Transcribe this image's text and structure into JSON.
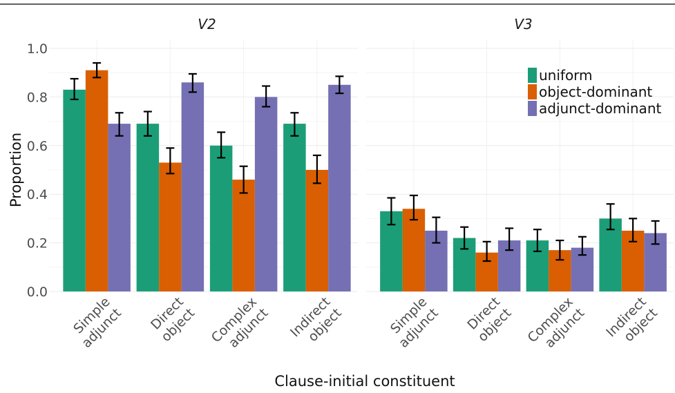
{
  "chart_data": {
    "type": "bar",
    "xlabel": "Clause-initial constituent",
    "ylabel": "Proportion",
    "ylim": [
      0,
      1.0
    ],
    "yticks": [
      "0.0",
      "0.2",
      "0.4",
      "0.6",
      "0.8",
      "1.0"
    ],
    "grid": true,
    "legend_position": "top-right",
    "categories": [
      [
        "Simple",
        "adjunct"
      ],
      [
        "Direct",
        "object"
      ],
      [
        "Complex",
        "adjunct"
      ],
      [
        "Indirect",
        "object"
      ]
    ],
    "series_colors": [
      "#1b9e77",
      "#d95f02",
      "#7570b3"
    ],
    "legend": [
      "uniform",
      "object-dominant",
      "adjunct-dominant"
    ],
    "panels": [
      {
        "name": "V2",
        "series": [
          {
            "name": "uniform",
            "values": [
              0.83,
              0.69,
              0.6,
              0.69
            ],
            "err_low": [
              0.79,
              0.64,
              0.55,
              0.64
            ],
            "err_high": [
              0.875,
              0.74,
              0.655,
              0.735
            ]
          },
          {
            "name": "object-dominant",
            "values": [
              0.91,
              0.53,
              0.46,
              0.5
            ],
            "err_low": [
              0.88,
              0.485,
              0.405,
              0.445
            ],
            "err_high": [
              0.94,
              0.59,
              0.515,
              0.56
            ]
          },
          {
            "name": "adjunct-dominant",
            "values": [
              0.69,
              0.86,
              0.8,
              0.85
            ],
            "err_low": [
              0.64,
              0.82,
              0.76,
              0.815
            ],
            "err_high": [
              0.735,
              0.895,
              0.845,
              0.885
            ]
          }
        ]
      },
      {
        "name": "V3",
        "series": [
          {
            "name": "uniform",
            "values": [
              0.33,
              0.22,
              0.21,
              0.3
            ],
            "err_low": [
              0.275,
              0.175,
              0.165,
              0.255
            ],
            "err_high": [
              0.385,
              0.265,
              0.255,
              0.36
            ]
          },
          {
            "name": "object-dominant",
            "values": [
              0.34,
              0.16,
              0.17,
              0.25
            ],
            "err_low": [
              0.295,
              0.125,
              0.13,
              0.205
            ],
            "err_high": [
              0.395,
              0.205,
              0.21,
              0.3
            ]
          },
          {
            "name": "adjunct-dominant",
            "values": [
              0.25,
              0.21,
              0.18,
              0.24
            ],
            "err_low": [
              0.2,
              0.17,
              0.15,
              0.195
            ],
            "err_high": [
              0.305,
              0.26,
              0.225,
              0.29
            ]
          }
        ]
      }
    ]
  }
}
